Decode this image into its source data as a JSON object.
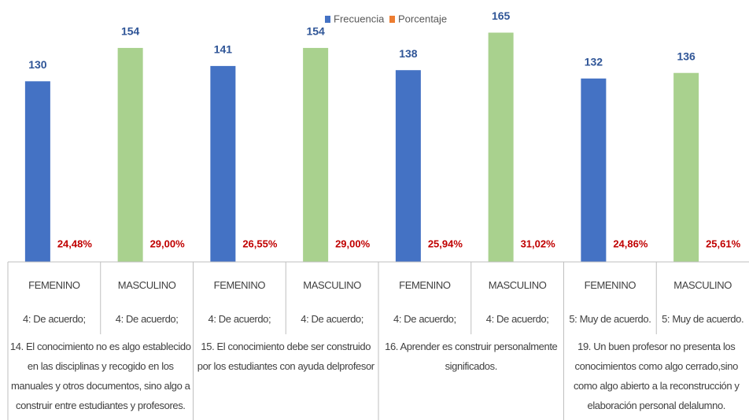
{
  "chart_data": {
    "type": "bar",
    "categories": [
      "FEMENINO",
      "MASCULINO",
      "FEMENINO",
      "MASCULINO",
      "FEMENINO",
      "MASCULINO",
      "FEMENINO",
      "MASCULINO"
    ],
    "responses": [
      "4: De acuerdo;",
      "4: De acuerdo;",
      "4: De acuerdo;",
      "4: De acuerdo;",
      "4: De acuerdo;",
      "4: De acuerdo;",
      "5: Muy de acuerdo.",
      "5: Muy de acuerdo."
    ],
    "groups": [
      "14. El conocimiento no es algo establecido en las disciplinas y recogido en los manuales y otros documentos, sino algo a construir entre estudiantes y profesores.",
      "15. El conocimiento debe ser construido por los estudiantes con ayuda delprofesor",
      "16. Aprender es construir personalmente significados.",
      "19. Un buen profesor no presenta los conocimientos como algo cerrado,sino como algo abierto a la reconstrucción y elaboración personal delalumno."
    ],
    "series": [
      {
        "name": "Frecuencia",
        "color": "#4472c4",
        "label_color": "#2f5597",
        "colors": [
          "#4472c4",
          "#a9d18e",
          "#4472c4",
          "#a9d18e",
          "#4472c4",
          "#a9d18e",
          "#4472c4",
          "#a9d18e"
        ],
        "values": [
          130,
          154,
          141,
          154,
          138,
          165,
          132,
          136
        ]
      },
      {
        "name": "Porcentaje",
        "color": "#ed7d31",
        "label_color": "#c00000",
        "values": [
          24.48,
          29.0,
          26.55,
          29.0,
          25.94,
          31.02,
          24.86,
          25.61
        ],
        "value_labels": [
          "24,48%",
          "29,00%",
          "26,55%",
          "29,00%",
          "25,94%",
          "31,02%",
          "24,86%",
          "25,61%"
        ]
      }
    ],
    "ylim": [
      0,
      180
    ]
  }
}
